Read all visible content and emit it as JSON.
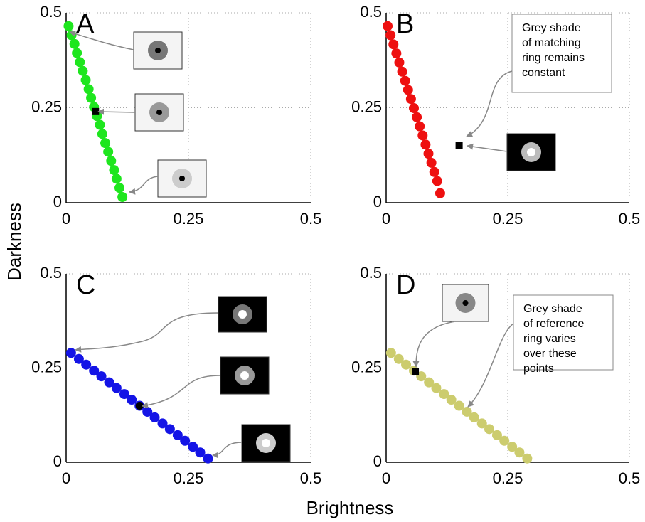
{
  "chart_data": [
    {
      "type": "scatter",
      "title": "A",
      "xlim": [
        0,
        0.5
      ],
      "ylim": [
        0,
        0.5
      ],
      "xticks": [
        0,
        0.25,
        0.5
      ],
      "yticks": [
        0,
        0.25,
        0.5
      ],
      "grid": true,
      "series": [
        {
          "color": "#1ee61e",
          "marker": "circle",
          "x": [
            0.005,
            0.011,
            0.017,
            0.022,
            0.028,
            0.034,
            0.04,
            0.046,
            0.051,
            0.057,
            0.063,
            0.069,
            0.074,
            0.08,
            0.086,
            0.092,
            0.098,
            0.103,
            0.109,
            0.115
          ],
          "values": [
            0.465,
            0.441,
            0.418,
            0.394,
            0.37,
            0.347,
            0.323,
            0.299,
            0.276,
            0.252,
            0.228,
            0.205,
            0.181,
            0.157,
            0.134,
            0.11,
            0.086,
            0.063,
            0.039,
            0.015
          ]
        },
        {
          "color": "#000000",
          "marker": "square",
          "x": [
            0.06
          ],
          "values": [
            0.24
          ]
        }
      ]
    },
    {
      "type": "scatter",
      "title": "B",
      "xlim": [
        0,
        0.5
      ],
      "ylim": [
        0,
        0.5
      ],
      "xticks": [
        0,
        0.25,
        0.5
      ],
      "yticks": [
        0,
        0.25,
        0.5
      ],
      "grid": true,
      "annotation": [
        "Grey shade",
        "of matching",
        "ring remains",
        "constant"
      ],
      "series": [
        {
          "color": "#ee1010",
          "marker": "circle",
          "x": [
            0.003,
            0.009,
            0.015,
            0.021,
            0.027,
            0.033,
            0.039,
            0.045,
            0.051,
            0.057,
            0.063,
            0.069,
            0.075,
            0.081,
            0.087,
            0.093,
            0.099,
            0.105,
            0.111
          ],
          "values": [
            0.465,
            0.441,
            0.417,
            0.393,
            0.369,
            0.345,
            0.321,
            0.297,
            0.273,
            0.249,
            0.225,
            0.201,
            0.177,
            0.153,
            0.129,
            0.105,
            0.081,
            0.057,
            0.025
          ]
        },
        {
          "color": "#000000",
          "marker": "square",
          "x": [
            0.15
          ],
          "values": [
            0.15
          ]
        }
      ]
    },
    {
      "type": "scatter",
      "title": "C",
      "xlim": [
        0,
        0.5
      ],
      "ylim": [
        0,
        0.5
      ],
      "xticks": [
        0,
        0.25,
        0.5
      ],
      "yticks": [
        0,
        0.25,
        0.5
      ],
      "grid": true,
      "series": [
        {
          "color": "#1414e6",
          "marker": "circle",
          "x": [
            0.01,
            0.026,
            0.041,
            0.057,
            0.072,
            0.088,
            0.103,
            0.119,
            0.134,
            0.15,
            0.166,
            0.181,
            0.197,
            0.212,
            0.228,
            0.243,
            0.259,
            0.274,
            0.29
          ],
          "values": [
            0.29,
            0.274,
            0.259,
            0.243,
            0.228,
            0.212,
            0.197,
            0.181,
            0.166,
            0.15,
            0.134,
            0.119,
            0.103,
            0.088,
            0.072,
            0.057,
            0.041,
            0.026,
            0.01
          ]
        },
        {
          "color": "#000000",
          "marker": "circle",
          "x": [
            0.15
          ],
          "values": [
            0.15
          ]
        }
      ]
    },
    {
      "type": "scatter",
      "title": "D",
      "xlim": [
        0,
        0.5
      ],
      "ylim": [
        0,
        0.5
      ],
      "xticks": [
        0,
        0.25,
        0.5
      ],
      "yticks": [
        0,
        0.25,
        0.5
      ],
      "grid": true,
      "annotation": [
        "Grey shade",
        "of reference",
        "ring varies",
        "over these",
        "points"
      ],
      "series": [
        {
          "color": "#cccc6e",
          "marker": "circle",
          "x": [
            0.01,
            0.026,
            0.041,
            0.057,
            0.072,
            0.088,
            0.103,
            0.119,
            0.134,
            0.15,
            0.166,
            0.181,
            0.197,
            0.212,
            0.228,
            0.243,
            0.259,
            0.274,
            0.29
          ],
          "values": [
            0.29,
            0.274,
            0.259,
            0.243,
            0.228,
            0.212,
            0.197,
            0.181,
            0.166,
            0.15,
            0.134,
            0.119,
            0.103,
            0.088,
            0.072,
            0.057,
            0.041,
            0.026,
            0.01
          ]
        },
        {
          "color": "#000000",
          "marker": "square",
          "x": [
            0.06
          ],
          "values": [
            0.24
          ]
        }
      ]
    }
  ],
  "xlabel": "Brightness",
  "ylabel": "Darkness"
}
